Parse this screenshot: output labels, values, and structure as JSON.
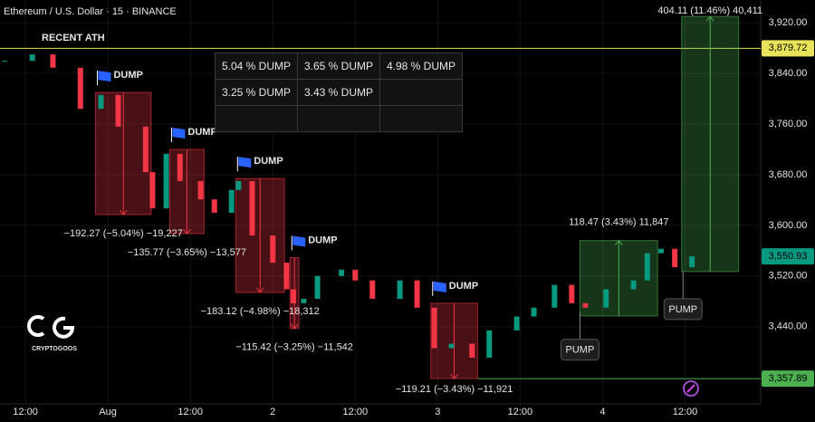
{
  "header": {
    "title": "Ethereum / U.S. Dollar · 15 · BINANCE"
  },
  "logo": {
    "text": "CRYPTOGOOS"
  },
  "table": {
    "rows": [
      [
        "5.04 % DUMP",
        "3.65 % DUMP",
        "4.98 % DUMP"
      ],
      [
        "3.25 % DUMP",
        "3.43 % DUMP"
      ]
    ]
  },
  "chart_data": {
    "type": "candlestick",
    "x": [
      -3,
      1,
      4,
      8,
      11,
      13.5,
      17.5,
      18.5,
      20.5,
      22.5,
      25.5,
      27.5,
      30,
      31,
      33,
      36,
      38,
      39,
      40.5,
      42.5,
      46,
      48,
      50.5,
      54.5,
      57,
      59.5,
      62,
      65,
      67.5,
      71.5,
      74,
      77,
      79.5,
      81.5,
      84.5,
      88.5,
      90.5,
      92.5,
      94.5,
      97
    ],
    "values": [
      3860,
      3870,
      3849,
      3784,
      3806,
      3756,
      3684,
      3627,
      3713,
      3670,
      3641,
      3620,
      3656,
      3670,
      3584,
      3541,
      3499,
      3477,
      3484,
      3520,
      3530,
      3513,
      3484,
      3513,
      3470,
      3406,
      3413,
      3391,
      3434,
      3456,
      3470,
      3506,
      3477,
      3470,
      3499,
      3513,
      3556,
      3563,
      3534,
      3550.93
    ],
    "up_color": "#089981",
    "down_color": "#f23645",
    "last_label": "3,550.93",
    "xlim": [
      -3.7,
      107
    ],
    "ylim": [
      3318,
      3956
    ],
    "xticks": [
      {
        "value": 0,
        "label": "12:00"
      },
      {
        "value": 12,
        "label": "Aug"
      },
      {
        "value": 24,
        "label": "12:00"
      },
      {
        "value": 36,
        "label": "2"
      },
      {
        "value": 48,
        "label": "12:00"
      },
      {
        "value": 60,
        "label": "3"
      },
      {
        "value": 72,
        "label": "12:00"
      },
      {
        "value": 84,
        "label": "4"
      },
      {
        "value": 96,
        "label": "12:00"
      }
    ],
    "yticks": [
      {
        "value": 3440,
        "label": "3,440.00"
      },
      {
        "value": 3520,
        "label": "3,520.00"
      },
      {
        "value": 3600,
        "label": "3,600.00"
      },
      {
        "value": 3680,
        "label": "3,680.00"
      },
      {
        "value": 3760,
        "label": "3,760.00"
      },
      {
        "value": 3840,
        "label": "3,840.00"
      },
      {
        "value": 3920,
        "label": "3,920.00"
      }
    ],
    "grid": true,
    "levels": [
      {
        "label": "RECENT ATH",
        "value": 3879.72,
        "value_label": "3,879.72",
        "color": "#e8e35a"
      },
      {
        "value": 3357.89,
        "value_label": "3,357.89",
        "color": "#4caf50",
        "from": 65.8
      }
    ],
    "boxes": [
      {
        "x": [
          10.2,
          18.3
        ],
        "from": 3810,
        "to": 3617,
        "label": "−192.27 (−5.04%) −19,227",
        "flag": "DUMP",
        "color": "#f23645"
      },
      {
        "x": [
          21,
          26
        ],
        "from": 3720,
        "to": 3587,
        "label": "−135.77 (−3.65%) −13,577",
        "flag": "DUMP",
        "color": "#f23645"
      },
      {
        "x": [
          30.6,
          37.7
        ],
        "from": 3674,
        "to": 3494,
        "label": "−183.12 (−4.98%) −18,312",
        "flag": "DUMP",
        "color": "#f23645"
      },
      {
        "x": [
          38.5,
          39.8
        ],
        "from": 3549,
        "to": 3437,
        "label": "−115.42 (−3.25%) −11,542",
        "flag": "DUMP",
        "color": "#f23645"
      },
      {
        "x": [
          59,
          65.8
        ],
        "from": 3477,
        "to": 3358,
        "label": "−119.21 (−3.43%) −11,921",
        "flag": "DUMP",
        "color": "#f23645"
      },
      {
        "x": [
          80.7,
          92
        ],
        "from": 3457,
        "to": 3576,
        "label": "118.47 (3.43%) 11,847",
        "color": "#4caf50"
      },
      {
        "x": [
          95.5,
          103.8
        ],
        "from": 3527,
        "to": 3930,
        "label": "404.11 (11.46%) 40,411",
        "color": "#4caf50"
      }
    ],
    "callouts": [
      {
        "text": "PUMP",
        "x": 80.7,
        "value": 3463
      },
      {
        "text": "PUMP",
        "x": 95.7,
        "value": 3527
      }
    ]
  }
}
